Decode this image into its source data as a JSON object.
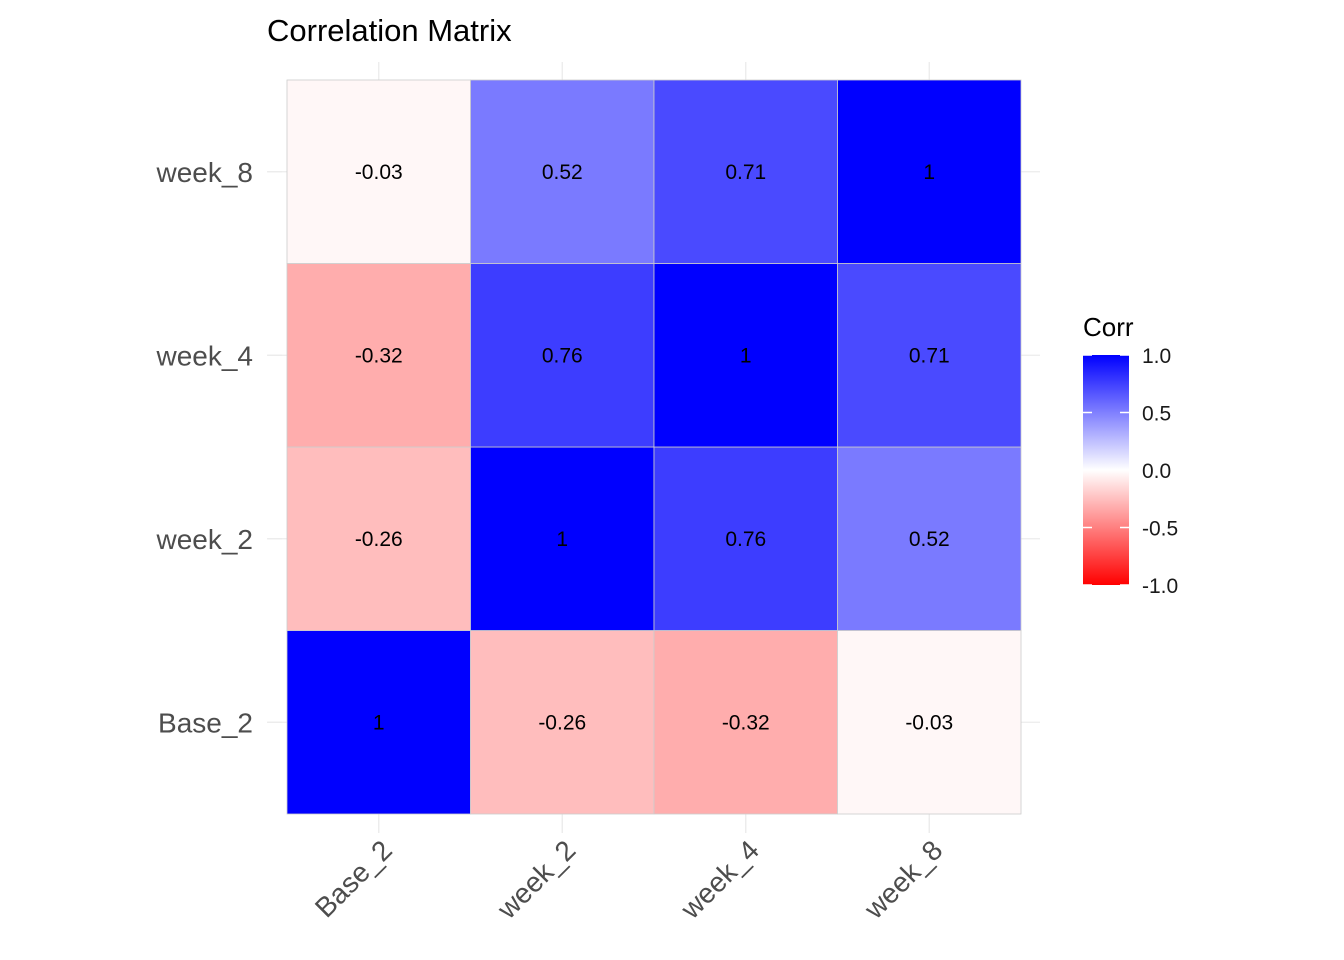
{
  "chart_data": {
    "type": "heatmap",
    "title": "Correlation Matrix",
    "xlabel": "",
    "ylabel": "",
    "x_categories": [
      "Base_2",
      "week_2",
      "week_4",
      "week_8"
    ],
    "y_categories": [
      "Base_2",
      "week_2",
      "week_4",
      "week_8"
    ],
    "matrix": [
      [
        1,
        -0.26,
        -0.32,
        -0.03
      ],
      [
        -0.26,
        1,
        0.76,
        0.52
      ],
      [
        -0.32,
        0.76,
        1,
        0.71
      ],
      [
        -0.03,
        0.52,
        0.71,
        1
      ]
    ],
    "cell_labels": [
      [
        "1",
        "-0.26",
        "-0.32",
        "-0.03"
      ],
      [
        "-0.26",
        "1",
        "0.76",
        "0.52"
      ],
      [
        "-0.32",
        "0.76",
        "1",
        "0.71"
      ],
      [
        "-0.03",
        "0.52",
        "0.71",
        "1"
      ]
    ],
    "legend": {
      "title": "Corr",
      "placement": "right",
      "ticks": [
        "1.0",
        "0.5",
        "0.0",
        "-0.5",
        "-1.0"
      ],
      "tick_values": [
        1.0,
        0.5,
        0.0,
        -0.5,
        -1.0
      ],
      "range": [
        -1,
        1
      ]
    },
    "colors": {
      "low": "#ff0000",
      "mid": "#ffffff",
      "high": "#0000ff"
    },
    "grid": true
  }
}
